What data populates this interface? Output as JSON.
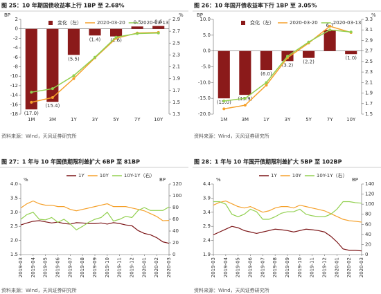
{
  "chart_data": [
    {
      "type": "combo",
      "title": "图 25：10 年期国债收益率上行 1BP 至 2.68%",
      "source": "资料来源：Wind，天风证券研究所",
      "y_unit": "BP",
      "y2_unit": "%",
      "categories": [
        "1M",
        "3M",
        "1Y",
        "3Y",
        "5Y",
        "7Y",
        "10Y"
      ],
      "series": [
        {
          "name": "变化（左）",
          "kind": "bar",
          "color": "#8b1a1a",
          "axis": "y",
          "values": [
            -17.0,
            -15.4,
            -5.5,
            -1.4,
            -1.6,
            0.5,
            0.6
          ],
          "value_labels": [
            "(17.0)",
            "(15.4)",
            "(5.5)",
            "(1.4)",
            "(1.6)",
            "0.5",
            "0.6"
          ]
        },
        {
          "name": "2020-03-20",
          "kind": "line",
          "color": "#f5a02a",
          "axis": "y2",
          "values": [
            1.5,
            1.58,
            1.9,
            2.25,
            2.58,
            2.67,
            2.68
          ]
        },
        {
          "name": "2020-03-13",
          "kind": "line",
          "color": "#92d050",
          "axis": "y2",
          "values": [
            1.67,
            1.73,
            1.95,
            2.26,
            2.6,
            2.66,
            2.67
          ]
        }
      ],
      "ylim": [
        -18,
        2
      ],
      "yticks": [
        2,
        0,
        -2,
        -4,
        -6,
        -8,
        -10,
        -12,
        -14,
        -16,
        -18
      ],
      "y2lim": [
        1.3,
        2.9
      ],
      "y2ticks": [
        2.9,
        2.7,
        2.5,
        2.3,
        2.1,
        1.9,
        1.7,
        1.5,
        1.3
      ]
    },
    {
      "type": "combo",
      "title": "图 26：10 年国开债收益率下行 1BP 至 3.05%",
      "source": "资料来源：Wind，天风证券研究所",
      "y_unit": "BP",
      "y2_unit": "%",
      "categories": [
        "1M",
        "3M",
        "1Y",
        "3Y",
        "5Y",
        "7Y",
        "10Y"
      ],
      "series": [
        {
          "name": "变化（左）",
          "kind": "bar",
          "color": "#8b1a1a",
          "axis": "y",
          "values": [
            -15.0,
            -13.9,
            -6.0,
            -3.2,
            -2.2,
            6.7,
            -1.0
          ],
          "value_labels": [
            "(15.0)",
            "(13.9)",
            "(6.0)",
            "(3.2)",
            "(2.2)",
            "6.7",
            "(1.0)"
          ]
        },
        {
          "name": "2020-03-20",
          "kind": "line",
          "color": "#f5a02a",
          "axis": "y2",
          "values": [
            1.6,
            1.67,
            2.05,
            2.57,
            2.85,
            3.17,
            3.05
          ]
        },
        {
          "name": "2020-03-13",
          "kind": "line",
          "color": "#92d050",
          "axis": "y2",
          "values": [
            1.75,
            1.8,
            2.1,
            2.6,
            2.87,
            3.1,
            3.06
          ]
        }
      ],
      "ylim": [
        -20,
        10
      ],
      "yticks": [
        {
          "value": 10,
          "label": "10.0"
        },
        {
          "value": 5,
          "label": "5.0"
        },
        {
          "value": 0,
          "label": "0.0"
        },
        {
          "value": -5,
          "label": "-5.0"
        },
        {
          "value": -10,
          "label": "-10.0"
        },
        {
          "value": -15,
          "label": "-15.0"
        },
        {
          "value": -20,
          "label": "-20.0"
        }
      ],
      "y2lim": [
        1.5,
        3.3
      ],
      "y2ticks": [
        3.3,
        3.1,
        2.9,
        2.7,
        2.5,
        2.3,
        2.1,
        1.9,
        1.7,
        1.5
      ]
    },
    {
      "type": "line",
      "title": "图 27：1 年与 10 年国债期限利差扩大 6BP 至 81BP",
      "source": "资料来源：Wind，天风证券研究所",
      "y_unit": "%",
      "y2_unit": "BP",
      "categories": [
        "2019-03",
        null,
        "2019-04",
        null,
        "2019-05",
        null,
        "2019-06",
        null,
        "2019-07",
        null,
        "2019-08",
        null,
        "2019-09",
        null,
        "2019-10",
        null,
        "2019-11",
        null,
        "2019-12",
        null,
        "2020-01",
        null,
        "2020-02",
        null,
        "2020-03"
      ],
      "series": [
        {
          "name": "1Y",
          "color": "#7b1416",
          "axis": "y",
          "values": [
            2.55,
            2.62,
            2.68,
            2.7,
            2.66,
            2.62,
            2.65,
            2.6,
            2.58,
            2.63,
            2.62,
            2.6,
            2.6,
            2.62,
            2.58,
            2.63,
            2.6,
            2.55,
            2.52,
            2.35,
            2.25,
            2.2,
            2.1,
            1.95,
            1.9
          ]
        },
        {
          "name": "10Y",
          "color": "#f5a02a",
          "axis": "y",
          "values": [
            3.15,
            3.3,
            3.4,
            3.3,
            3.25,
            3.25,
            3.2,
            3.2,
            3.1,
            3.05,
            3.1,
            3.15,
            3.2,
            3.25,
            3.3,
            3.2,
            3.2,
            3.2,
            3.15,
            3.1,
            3.05,
            2.95,
            2.85,
            2.7,
            2.71
          ]
        },
        {
          "name": "10Y-1Y（右）",
          "color": "#92d050",
          "axis": "y2",
          "values": [
            60,
            68,
            72,
            60,
            59,
            63,
            55,
            60,
            52,
            42,
            48,
            55,
            60,
            63,
            72,
            57,
            60,
            65,
            63,
            75,
            80,
            75,
            75,
            75,
            81
          ]
        }
      ],
      "ylim": [
        1.5,
        4.0
      ],
      "yticks": [
        {
          "value": 4,
          "label": "4.0"
        },
        3.5,
        {
          "value": 3,
          "label": "3.0"
        },
        2.5,
        {
          "value": 2,
          "label": "2.0"
        },
        1.5
      ],
      "y2lim": [
        0,
        120
      ],
      "y2ticks": [
        120,
        100,
        80,
        60,
        40,
        20,
        0
      ]
    },
    {
      "type": "line",
      "title": "图 28：1 年与 10 年国开债期限利差扩大 5BP 至 102BP",
      "source": "资料来源：Wind，天风证券研究所",
      "y_unit": "%",
      "y2_unit": "BP",
      "categories": [
        "2019-03",
        null,
        "2019-04",
        null,
        "2019-05",
        null,
        "2019-06",
        null,
        "2019-07",
        null,
        "2019-08",
        null,
        "2019-09",
        null,
        "2019-10",
        null,
        "2019-11",
        null,
        "2019-12",
        null,
        "2020-01",
        null,
        "2020-02",
        null,
        "2020-03"
      ],
      "series": [
        {
          "name": "1Y",
          "color": "#7b1416",
          "axis": "y",
          "values": [
            2.6,
            2.7,
            2.8,
            2.9,
            2.85,
            2.75,
            2.7,
            2.65,
            2.7,
            2.75,
            2.8,
            2.78,
            2.75,
            2.7,
            2.75,
            2.8,
            2.78,
            2.75,
            2.7,
            2.55,
            2.35,
            2.1,
            2.05,
            2.05,
            2.03
          ]
        },
        {
          "name": "10Y",
          "color": "#f5a02a",
          "axis": "y",
          "values": [
            3.65,
            3.75,
            3.8,
            3.7,
            3.6,
            3.55,
            3.6,
            3.5,
            3.4,
            3.45,
            3.55,
            3.6,
            3.6,
            3.55,
            3.65,
            3.6,
            3.55,
            3.5,
            3.45,
            3.35,
            3.25,
            3.15,
            3.1,
            3.08,
            3.05
          ]
        },
        {
          "name": "10Y-1Y（右）",
          "color": "#92d050",
          "axis": "y2",
          "values": [
            105,
            105,
            100,
            80,
            75,
            80,
            90,
            85,
            70,
            70,
            75,
            82,
            85,
            85,
            90,
            80,
            77,
            75,
            75,
            80,
            90,
            105,
            105,
            103,
            102
          ]
        }
      ],
      "ylim": [
        1.9,
        4.4
      ],
      "yticks": [
        4.4,
        3.9,
        3.4,
        2.9,
        2.4,
        1.9
      ],
      "y2lim": [
        0,
        140
      ],
      "y2ticks": [
        140,
        120,
        100,
        80,
        60,
        40,
        20,
        0
      ]
    }
  ]
}
